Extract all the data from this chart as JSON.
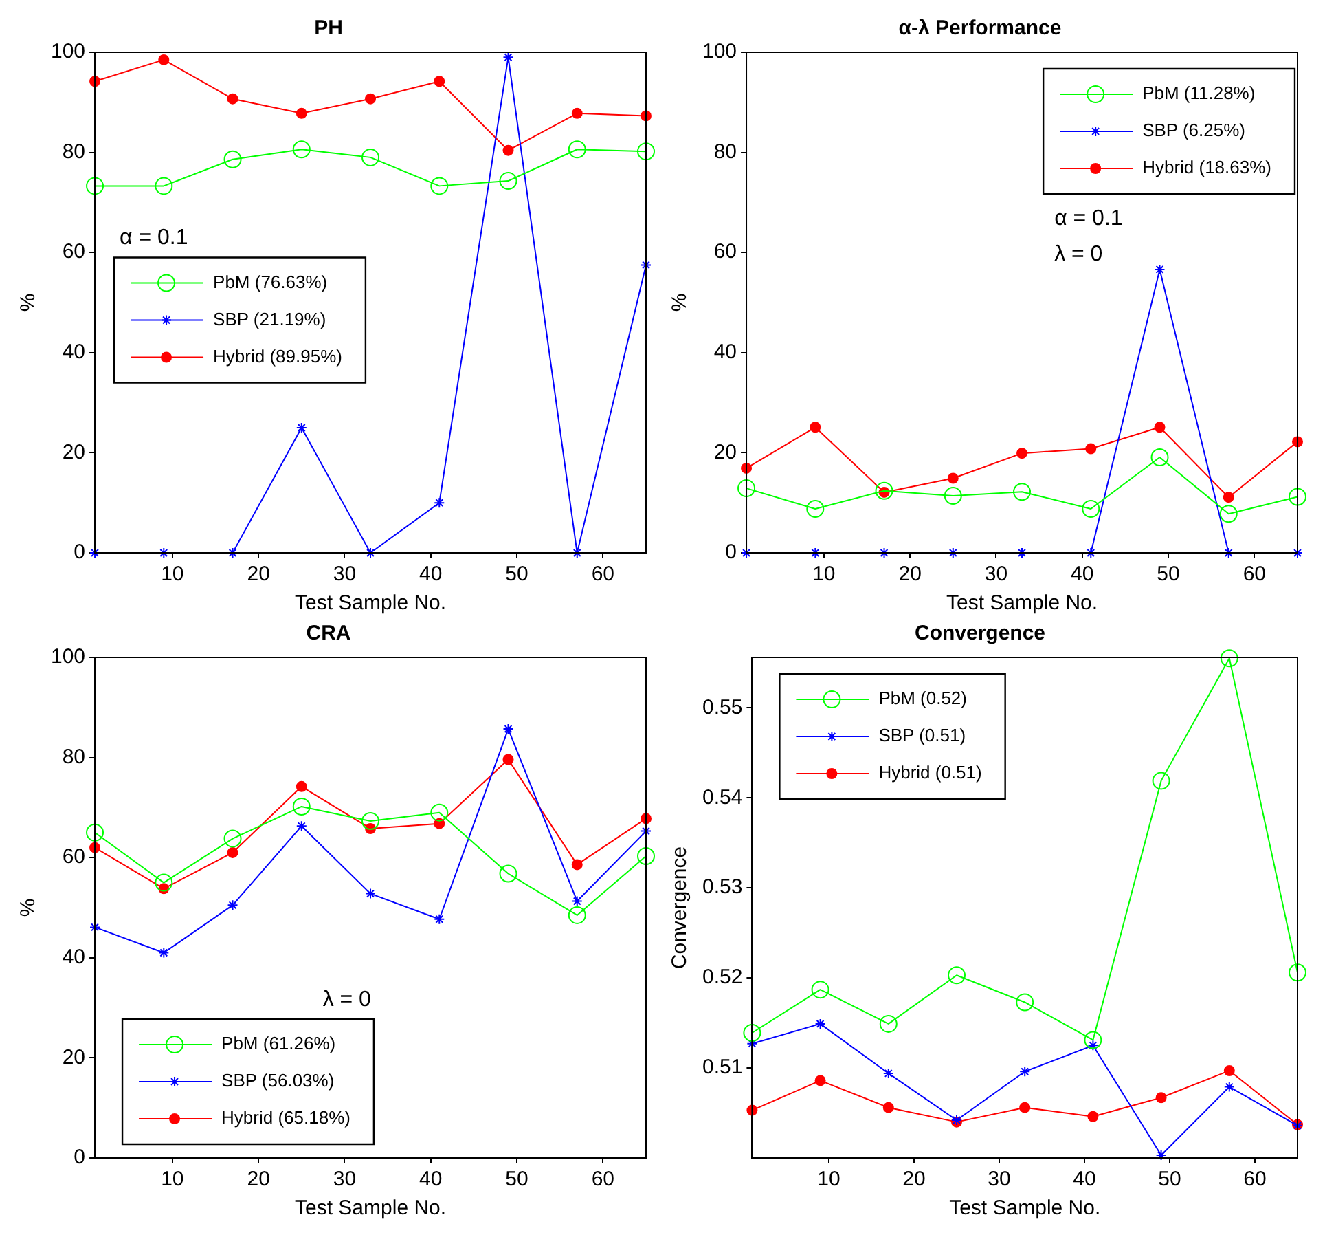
{
  "chart_data": [
    {
      "type": "line",
      "title": "PH",
      "xlabel": "Test Sample No.",
      "ylabel": "%",
      "x": [
        1,
        9,
        17,
        25,
        33,
        41,
        49,
        57,
        65
      ],
      "xlim": [
        1,
        65
      ],
      "xticks": [
        10,
        20,
        30,
        40,
        50,
        60
      ],
      "ylim": [
        0,
        100
      ],
      "yticks": [
        0,
        20,
        40,
        60,
        80,
        100
      ],
      "legend": "left",
      "annotations": [
        "α = 0.1"
      ],
      "series": [
        {
          "name": "PbM (76.63%)",
          "color": "#00ff00",
          "marker": "circle",
          "values": [
            73.3,
            73.3,
            78.6,
            80.6,
            79,
            73.3,
            74.3,
            80.6,
            80.2
          ]
        },
        {
          "name": "SBP (21.19%)",
          "color": "#0000ff",
          "marker": "cross",
          "values": [
            0,
            0,
            0,
            25,
            0,
            10,
            99,
            0,
            57.5
          ]
        },
        {
          "name": "Hybrid (89.95%)",
          "color": "#ff0000",
          "marker": "circle",
          "values": [
            94.2,
            98.5,
            90.7,
            87.8,
            90.7,
            94.2,
            80.4,
            87.8,
            87.3
          ]
        }
      ]
    },
    {
      "type": "line",
      "title": "α-λ Performance",
      "xlabel": "Test Sample No.",
      "ylabel": "%",
      "x": [
        1,
        9,
        17,
        25,
        33,
        41,
        49,
        57,
        65
      ],
      "xlim": [
        1,
        65
      ],
      "xticks": [
        10,
        20,
        30,
        40,
        50,
        60
      ],
      "ylim": [
        0,
        100
      ],
      "yticks": [
        0,
        20,
        40,
        60,
        80,
        100
      ],
      "legend": "top right",
      "annotations": [
        "α = 0.1",
        "λ = 0"
      ],
      "series": [
        {
          "name": "PbM (11.28%)",
          "color": "#00ff00",
          "marker": "circle",
          "values": [
            12.9,
            8.8,
            12.4,
            11.4,
            12.2,
            8.8,
            19.1,
            7.8,
            11.2
          ]
        },
        {
          "name": "SBP (6.25%)",
          "color": "#0000ff",
          "marker": "cross",
          "values": [
            0,
            0,
            0,
            0,
            0,
            0,
            56.6,
            0,
            0
          ]
        },
        {
          "name": "Hybrid (18.63%)",
          "color": "#ff0000",
          "marker": "circle",
          "values": [
            16.9,
            25.1,
            12.1,
            14.9,
            19.9,
            20.8,
            25.1,
            11.1,
            22.2
          ]
        }
      ]
    },
    {
      "type": "line",
      "title": "CRA",
      "xlabel": "Test Sample No.",
      "ylabel": "%",
      "x": [
        1,
        9,
        17,
        25,
        33,
        41,
        49,
        57,
        65
      ],
      "xlim": [
        1,
        65
      ],
      "xticks": [
        10,
        20,
        30,
        40,
        50,
        60
      ],
      "ylim": [
        0,
        100
      ],
      "yticks": [
        0,
        20,
        40,
        60,
        80,
        100
      ],
      "legend": "bottom left",
      "annotations": [
        "λ = 0"
      ],
      "series": [
        {
          "name": "PbM (61.26%)",
          "color": "#00ff00",
          "marker": "circle",
          "values": [
            65,
            55,
            63.8,
            70.2,
            67.3,
            69,
            56.8,
            48.5,
            60.3
          ]
        },
        {
          "name": "SBP (56.03%)",
          "color": "#0000ff",
          "marker": "cross",
          "values": [
            46.1,
            41,
            50.5,
            66.3,
            52.8,
            47.7,
            85.7,
            51.3,
            65.3
          ]
        },
        {
          "name": "Hybrid (65.18%)",
          "color": "#ff0000",
          "marker": "circle",
          "values": [
            62,
            53.8,
            61,
            74.2,
            65.8,
            66.8,
            79.6,
            58.6,
            67.8
          ]
        }
      ]
    },
    {
      "type": "line",
      "title": "Convergence",
      "xlabel": "Test Sample No.",
      "ylabel": "Convergence",
      "x": [
        1,
        9,
        17,
        25,
        33,
        41,
        49,
        57,
        65
      ],
      "xlim": [
        1,
        65
      ],
      "xticks": [
        10,
        20,
        30,
        40,
        50,
        60
      ],
      "ylim": [
        0.5,
        0.5556
      ],
      "yticks": [
        0.51,
        0.52,
        0.53,
        0.54,
        0.55
      ],
      "legend": "top left",
      "series": [
        {
          "name": "PbM (0.52)",
          "color": "#00ff00",
          "marker": "circle",
          "values": [
            0.5139,
            0.5187,
            0.5149,
            0.5203,
            0.5173,
            0.5131,
            0.5419,
            0.5555,
            0.5206
          ]
        },
        {
          "name": "SBP (0.51)",
          "color": "#0000ff",
          "marker": "cross",
          "values": [
            0.5127,
            0.5149,
            0.5094,
            0.5042,
            0.5096,
            0.5125,
            0.5003,
            0.5079,
            0.5036
          ]
        },
        {
          "name": "Hybrid (0.51)",
          "color": "#ff0000",
          "marker": "circle",
          "values": [
            0.5053,
            0.5086,
            0.5056,
            0.504,
            0.5056,
            0.5046,
            0.5067,
            0.5097,
            0.5037
          ]
        }
      ]
    }
  ]
}
